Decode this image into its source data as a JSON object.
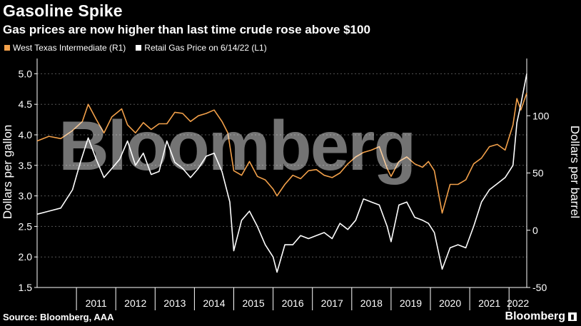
{
  "header": {
    "title": "Gasoline Spike",
    "subtitle": "Gas prices are now higher than last time crude rose above $100"
  },
  "legend": {
    "wti": "West Texas Intermediate (R1)",
    "gas": "Retail Gas Price on 6/14/22 (L1)"
  },
  "footer": {
    "source": "Source: Bloomberg, AAA",
    "brand": "Bloomberg"
  },
  "watermark": "Bloomberg",
  "colors": {
    "wti": "#f2a04a",
    "gas": "#ffffff",
    "grid": "#555555",
    "background": "#000000"
  },
  "chart_data": {
    "type": "line",
    "title": "Gasoline Spike",
    "subtitle": "Gas prices are now higher than last time crude rose above $100",
    "xlabel": "",
    "ylabel_left": "Dollars per gallon",
    "ylabel_right": "Dollars per barrel",
    "x_ticks": [
      "2011",
      "2012",
      "2013",
      "2014",
      "2015",
      "2016",
      "2017",
      "2018",
      "2019",
      "2020",
      "2021",
      "2022"
    ],
    "xlim": [
      2010.0,
      2022.45
    ],
    "ylim_left": [
      1.5,
      5.25
    ],
    "ylim_right": [
      -50,
      150
    ],
    "y_ticks_left": [
      "1.5",
      "2.0",
      "2.5",
      "3.0",
      "3.5",
      "4.0",
      "4.5",
      "5.0"
    ],
    "y_ticks_right": [
      "-50",
      "0",
      "50",
      "100"
    ],
    "grid": "horizontal-dashed",
    "legend_position": "top-left",
    "series": [
      {
        "name": "West Texas Intermediate (R1)",
        "axis": "right",
        "color": "#f2a04a",
        "x": [
          2010.0,
          2010.3,
          2010.6,
          2010.9,
          2011.15,
          2011.3,
          2011.5,
          2011.7,
          2011.9,
          2012.15,
          2012.3,
          2012.5,
          2012.7,
          2012.9,
          2013.1,
          2013.3,
          2013.5,
          2013.7,
          2013.9,
          2014.1,
          2014.3,
          2014.5,
          2014.7,
          2014.85,
          2015.0,
          2015.2,
          2015.4,
          2015.6,
          2015.8,
          2016.0,
          2016.1,
          2016.3,
          2016.5,
          2016.7,
          2016.9,
          2017.1,
          2017.3,
          2017.5,
          2017.7,
          2017.9,
          2018.1,
          2018.3,
          2018.5,
          2018.7,
          2018.9,
          2019.0,
          2019.2,
          2019.4,
          2019.6,
          2019.8,
          2019.95,
          2020.1,
          2020.3,
          2020.5,
          2020.7,
          2020.9,
          2021.1,
          2021.3,
          2021.5,
          2021.7,
          2021.9,
          2022.1,
          2022.2,
          2022.3,
          2022.45
        ],
        "y": [
          78,
          82,
          80,
          87,
          95,
          110,
          97,
          85,
          99,
          106,
          92,
          85,
          94,
          88,
          93,
          93,
          103,
          102,
          95,
          100,
          102,
          105,
          95,
          85,
          52,
          48,
          60,
          47,
          44,
          36,
          30,
          40,
          48,
          45,
          52,
          53,
          48,
          46,
          50,
          58,
          64,
          68,
          70,
          73,
          54,
          47,
          60,
          64,
          58,
          55,
          60,
          52,
          15,
          40,
          40,
          44,
          58,
          63,
          73,
          75,
          70,
          92,
          115,
          105,
          120
        ]
      },
      {
        "name": "Retail Gas Price on 6/14/22 (L1)",
        "axis": "left",
        "color": "#ffffff",
        "x": [
          2010.0,
          2010.3,
          2010.6,
          2010.9,
          2011.1,
          2011.3,
          2011.5,
          2011.7,
          2011.9,
          2012.1,
          2012.3,
          2012.5,
          2012.7,
          2012.9,
          2013.1,
          2013.3,
          2013.5,
          2013.7,
          2013.9,
          2014.1,
          2014.3,
          2014.5,
          2014.7,
          2014.9,
          2015.0,
          2015.2,
          2015.4,
          2015.6,
          2015.8,
          2016.0,
          2016.1,
          2016.3,
          2016.5,
          2016.7,
          2016.9,
          2017.1,
          2017.3,
          2017.5,
          2017.7,
          2017.9,
          2018.1,
          2018.3,
          2018.5,
          2018.7,
          2018.9,
          2019.0,
          2019.2,
          2019.4,
          2019.6,
          2019.8,
          2019.95,
          2020.1,
          2020.3,
          2020.5,
          2020.7,
          2020.9,
          2021.1,
          2021.3,
          2021.5,
          2021.7,
          2021.9,
          2022.1,
          2022.2,
          2022.3,
          2022.45
        ],
        "y": [
          2.7,
          2.75,
          2.8,
          3.1,
          3.55,
          3.95,
          3.6,
          3.3,
          3.45,
          3.6,
          3.9,
          3.5,
          3.7,
          3.35,
          3.4,
          3.9,
          3.55,
          3.45,
          3.3,
          3.45,
          3.65,
          3.7,
          3.4,
          2.9,
          2.1,
          2.6,
          2.75,
          2.5,
          2.2,
          2.0,
          1.75,
          2.2,
          2.2,
          2.35,
          2.3,
          2.35,
          2.4,
          2.3,
          2.55,
          2.45,
          2.6,
          2.95,
          2.9,
          2.85,
          2.5,
          2.25,
          2.85,
          2.9,
          2.65,
          2.6,
          2.55,
          2.4,
          1.8,
          2.15,
          2.2,
          2.15,
          2.5,
          2.9,
          3.1,
          3.2,
          3.3,
          3.5,
          4.2,
          4.5,
          5.0
        ]
      }
    ]
  }
}
